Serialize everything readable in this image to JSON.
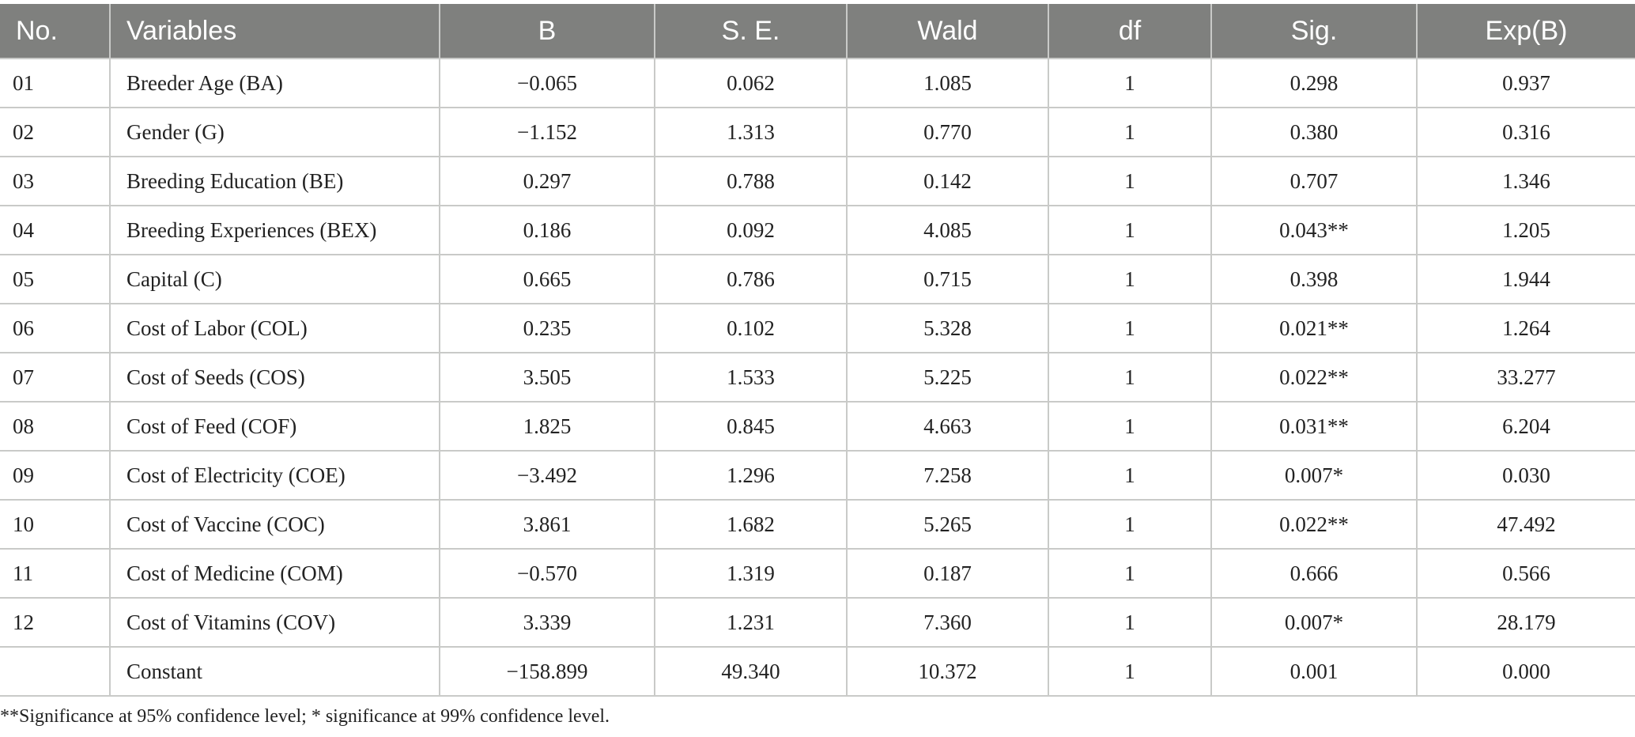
{
  "table": {
    "headers": [
      "No.",
      "Variables",
      "B",
      "S. E.",
      "Wald",
      "df",
      "Sig.",
      "Exp(B)"
    ],
    "rows": [
      [
        "01",
        "Breeder Age (BA)",
        "−0.065",
        "0.062",
        "1.085",
        "1",
        "0.298",
        "0.937"
      ],
      [
        "02",
        "Gender (G)",
        "−1.152",
        "1.313",
        "0.770",
        "1",
        "0.380",
        "0.316"
      ],
      [
        "03",
        "Breeding Education (BE)",
        "0.297",
        "0.788",
        "0.142",
        "1",
        "0.707",
        "1.346"
      ],
      [
        "04",
        "Breeding Experiences (BEX)",
        "0.186",
        "0.092",
        "4.085",
        "1",
        "0.043**",
        "1.205"
      ],
      [
        "05",
        "Capital (C)",
        "0.665",
        "0.786",
        "0.715",
        "1",
        "0.398",
        "1.944"
      ],
      [
        "06",
        "Cost of Labor (COL)",
        "0.235",
        "0.102",
        "5.328",
        "1",
        "0.021**",
        "1.264"
      ],
      [
        "07",
        "Cost of Seeds (COS)",
        "3.505",
        "1.533",
        "5.225",
        "1",
        "0.022**",
        "33.277"
      ],
      [
        "08",
        "Cost of Feed (COF)",
        "1.825",
        "0.845",
        "4.663",
        "1",
        "0.031**",
        "6.204"
      ],
      [
        "09",
        "Cost of Electricity (COE)",
        "−3.492",
        "1.296",
        "7.258",
        "1",
        "0.007*",
        "0.030"
      ],
      [
        "10",
        "Cost of Vaccine (COC)",
        "3.861",
        "1.682",
        "5.265",
        "1",
        "0.022**",
        "47.492"
      ],
      [
        "11",
        "Cost of Medicine (COM)",
        "−0.570",
        "1.319",
        "0.187",
        "1",
        "0.666",
        "0.566"
      ],
      [
        "12",
        "Cost of Vitamins (COV)",
        "3.339",
        "1.231",
        "7.360",
        "1",
        "0.007*",
        "28.179"
      ],
      [
        "",
        "Constant",
        "−158.899",
        "49.340",
        "10.372",
        "1",
        "0.001",
        "0.000"
      ]
    ]
  },
  "footnote": "**Significance at 95% confidence level; * significance at 99% confidence level."
}
